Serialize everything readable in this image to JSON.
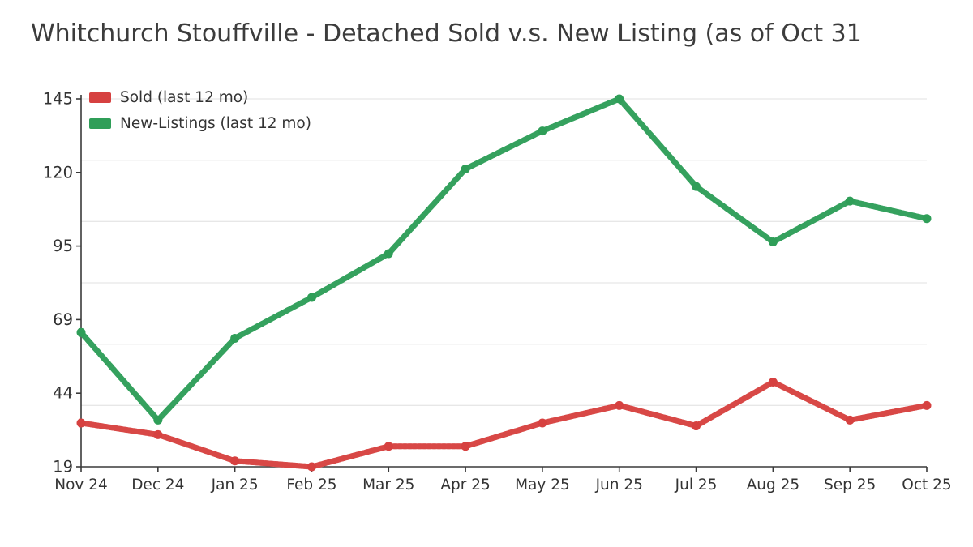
{
  "title": "Whitchurch Stouffville - Detached Sold v.s. New Listing (as of Oct 31",
  "colors": {
    "sold_line": "#e2716d",
    "sold_accent": "#d64140",
    "new_listings_line": "#57b77e",
    "new_listings_accent": "#2f9e58",
    "grid": "#e7e7e7",
    "axis": "#3a3a3a",
    "tick_text": "#333333",
    "title_text": "#3c3c3c"
  },
  "chart_data": {
    "type": "line",
    "title": "Whitchurch Stouffville - Detached Sold v.s. New Listing (as of Oct 31",
    "xlabel": "",
    "ylabel": "",
    "categories": [
      "Nov 24",
      "Dec 24",
      "Jan 25",
      "Feb 25",
      "Mar 25",
      "Apr 25",
      "May 25",
      "Jun 25",
      "Jul 25",
      "Aug 25",
      "Sep 25",
      "Oct 25"
    ],
    "series": [
      {
        "name": "Sold (last 12 mo)",
        "color": "#d64140",
        "color_light": "#e2716d",
        "values": [
          34,
          30,
          21,
          19,
          26,
          26,
          34,
          40,
          33,
          48,
          35,
          40
        ]
      },
      {
        "name": "New-Listings (last 12 mo)",
        "color": "#2f9e58",
        "color_light": "#57b77e",
        "values": [
          65,
          35,
          63,
          77,
          92,
          121,
          134,
          145,
          115,
          96,
          110,
          104
        ]
      }
    ],
    "ylim": [
      19,
      145
    ],
    "yticks": [
      19,
      44,
      69,
      95,
      120,
      145
    ],
    "grid": "horizontal, 6 even bands",
    "legend_position": "top-left-inside"
  }
}
